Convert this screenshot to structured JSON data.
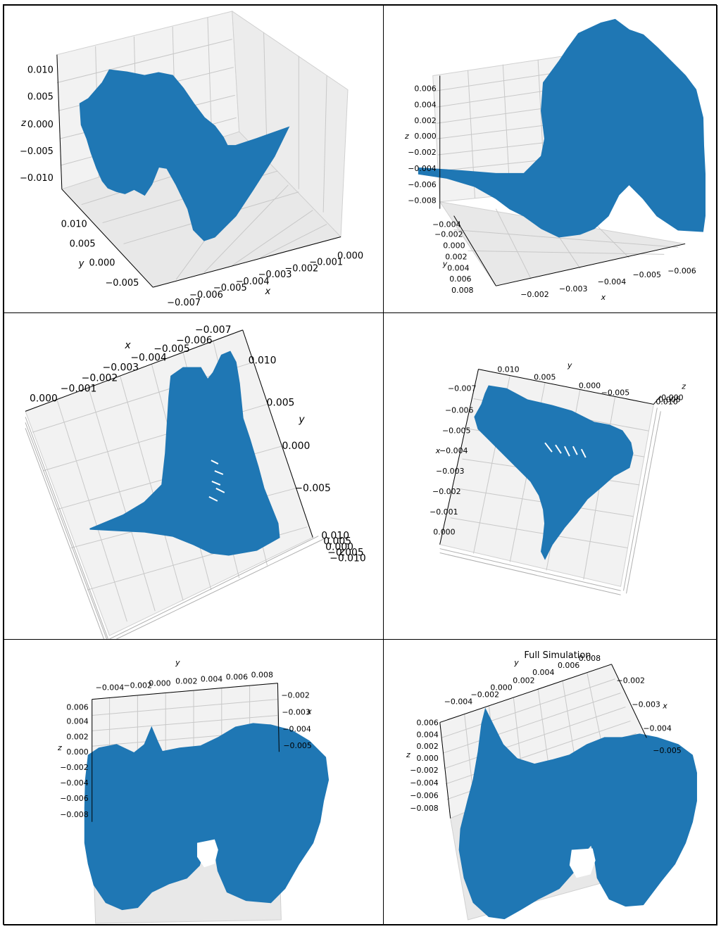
{
  "colors": {
    "series": "#1f77b4",
    "pane": "#f2f2f2",
    "pane_side": "#e6e6e6",
    "grid": "#c8c8c8",
    "axis": "#000000"
  },
  "chart_data": [
    {
      "type": "line3d",
      "view": "perspective-front",
      "title": "",
      "xlabel": "x",
      "ylabel": "y",
      "zlabel": "z",
      "x_ticks": [
        "−0.007",
        "−0.006",
        "−0.005",
        "−0.004",
        "−0.003",
        "−0.002",
        "−0.001",
        "0.000"
      ],
      "y_ticks": [
        "0.010",
        "0.005",
        "0.000",
        "−0.005"
      ],
      "z_ticks": [
        "0.010",
        "0.005",
        "0.000",
        "−0.005",
        "−0.010"
      ],
      "xlim": [
        -0.007,
        0.0
      ],
      "ylim": [
        -0.006,
        0.012
      ],
      "zlim": [
        -0.012,
        0.012
      ]
    },
    {
      "type": "line3d",
      "view": "perspective-rotated",
      "title": "",
      "xlabel": "x",
      "ylabel": "y",
      "zlabel": "z",
      "x_ticks": [
        "−0.002",
        "−0.003",
        "−0.004",
        "−0.005",
        "−0.006"
      ],
      "y_ticks": [
        "−0.004",
        "−0.002",
        "0.000",
        "0.002",
        "0.004",
        "0.006",
        "0.008"
      ],
      "z_ticks": [
        "0.006",
        "0.004",
        "0.002",
        "0.000",
        "−0.002",
        "−0.004",
        "−0.006",
        "−0.008"
      ],
      "xlim": [
        -0.007,
        -0.001
      ],
      "ylim": [
        -0.005,
        0.009
      ],
      "zlim": [
        -0.009,
        0.007
      ]
    },
    {
      "type": "line3d",
      "view": "top-down",
      "title": "",
      "xlabel": "x",
      "ylabel": "y",
      "zlabel": "z",
      "x_ticks": [
        "0.000",
        "−0.001",
        "−0.002",
        "−0.003",
        "−0.004",
        "−0.005",
        "−0.006",
        "−0.007"
      ],
      "y_ticks": [
        "0.010",
        "0.005",
        "0.000",
        "−0.005"
      ],
      "z_ticks": [
        "0.010",
        "0.005",
        "0.000",
        "−0.005",
        "−0.010"
      ],
      "xlim": [
        -0.007,
        0.0
      ],
      "ylim": [
        -0.007,
        0.011
      ],
      "zlim": [
        -0.011,
        0.011
      ]
    },
    {
      "type": "line3d",
      "view": "top-down-rotated",
      "title": "",
      "xlabel": "x",
      "ylabel": "y",
      "zlabel": "z",
      "x_ticks": [
        "−0.007",
        "−0.006",
        "−0.005",
        "−0.004",
        "−0.003",
        "−0.002",
        "−0.001",
        "0.000"
      ],
      "y_ticks": [
        "0.010",
        "0.005",
        "0.000",
        "−0.005"
      ],
      "z_ticks": [
        "0.010",
        "0.005",
        "0.000"
      ],
      "xlim": [
        -0.007,
        0.0
      ],
      "ylim": [
        -0.007,
        0.011
      ],
      "zlim": [
        -0.011,
        0.011
      ]
    },
    {
      "type": "line3d",
      "view": "side",
      "title": "",
      "xlabel": "x",
      "ylabel": "y",
      "zlabel": "z",
      "x_ticks": [
        "−0.002",
        "−0.003",
        "−0.004",
        "−0.005"
      ],
      "y_ticks": [
        "−0.004",
        "−0.002",
        "0.000",
        "0.002",
        "0.004",
        "0.006",
        "0.008"
      ],
      "z_ticks": [
        "0.006",
        "0.004",
        "0.002",
        "0.000",
        "−0.002",
        "−0.004",
        "−0.006",
        "−0.008"
      ],
      "xlim": [
        -0.006,
        -0.001
      ],
      "ylim": [
        -0.005,
        0.009
      ],
      "zlim": [
        -0.009,
        0.007
      ]
    },
    {
      "type": "line3d",
      "view": "side-rotated",
      "title": "Full Simulation",
      "xlabel": "x",
      "ylabel": "y",
      "zlabel": "z",
      "x_ticks": [
        "−0.002",
        "−0.003",
        "−0.004",
        "−0.005"
      ],
      "y_ticks": [
        "−0.004",
        "−0.002",
        "0.000",
        "0.002",
        "0.004",
        "0.006",
        "0.008"
      ],
      "z_ticks": [
        "0.006",
        "0.004",
        "0.002",
        "0.000",
        "−0.002",
        "−0.004",
        "−0.006",
        "−0.008"
      ],
      "xlim": [
        -0.006,
        -0.001
      ],
      "ylim": [
        -0.005,
        0.009
      ],
      "zlim": [
        -0.009,
        0.007
      ]
    }
  ]
}
